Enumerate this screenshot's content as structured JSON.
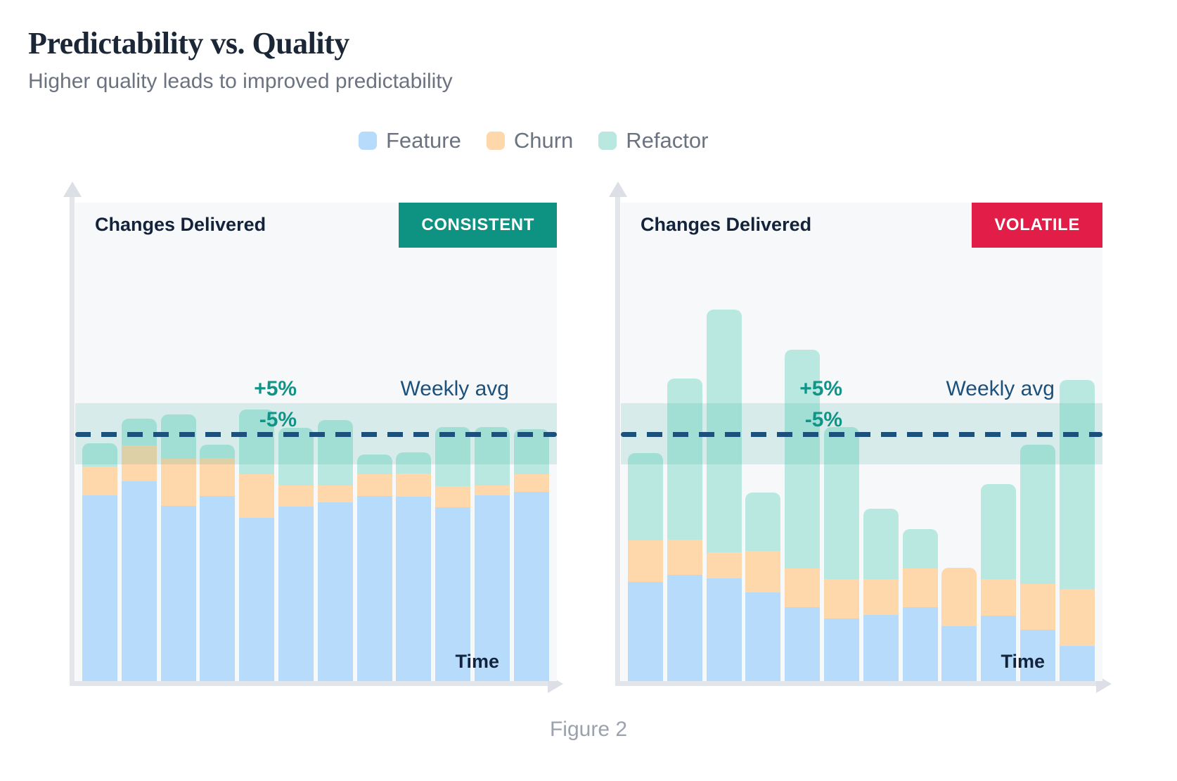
{
  "page": {
    "title": "Predictability vs. Quality",
    "subtitle": "Higher quality leads to improved predictability",
    "caption": "Figure 2"
  },
  "colors": {
    "feature": "#b7dcfb",
    "churn": "#fed8ab",
    "refactor": "#b9e8e0",
    "consistent_badge": "#0e9383",
    "volatile_badge": "#e11d48",
    "avg_line": "#1b517b",
    "band": "rgba(21,163,145,0.14)",
    "plusminus_text": "#0f9488"
  },
  "legend": {
    "items": [
      {
        "label": "Feature",
        "color": "#b7dcfb"
      },
      {
        "label": "Churn",
        "color": "#fed8ab"
      },
      {
        "label": "Refactor",
        "color": "#b9e8e0"
      }
    ]
  },
  "chart_data": [
    {
      "type": "bar",
      "stacked": true,
      "title": "Changes Delivered",
      "xlabel": "Time",
      "badge": {
        "label": "CONSISTENT",
        "color": "#0e9383"
      },
      "legend_position": "top-center",
      "grid": false,
      "units": "percent of plot height (0-100), stacked per bar",
      "avg_line": {
        "label": "Weekly avg",
        "height_pct": 51.6,
        "band_half_pct": 6.4,
        "plus_label": "+5%",
        "minus_label": "-5%"
      },
      "series_names": [
        "Feature",
        "Churn",
        "Refactor"
      ],
      "bars": [
        {
          "feature": 38.8,
          "churn": 6.0,
          "refactor": 4.9
        },
        {
          "feature": 41.8,
          "churn": 7.5,
          "refactor": 5.6
        },
        {
          "feature": 36.6,
          "churn": 9.9,
          "refactor": 9.3
        },
        {
          "feature": 38.7,
          "churn": 7.9,
          "refactor": 2.8
        },
        {
          "feature": 34.1,
          "churn": 9.1,
          "refactor": 13.5
        },
        {
          "feature": 36.5,
          "churn": 4.4,
          "refactor": 12.1
        },
        {
          "feature": 37.4,
          "churn": 3.5,
          "refactor": 13.7
        },
        {
          "feature": 38.7,
          "churn": 4.6,
          "refactor": 4.0
        },
        {
          "feature": 38.5,
          "churn": 4.9,
          "refactor": 4.4
        },
        {
          "feature": 36.3,
          "churn": 4.4,
          "refactor": 12.4
        },
        {
          "feature": 38.8,
          "churn": 2.1,
          "refactor": 12.2
        },
        {
          "feature": 39.6,
          "churn": 3.7,
          "refactor": 9.3
        }
      ]
    },
    {
      "type": "bar",
      "stacked": true,
      "title": "Changes Delivered",
      "xlabel": "Time",
      "badge": {
        "label": "VOLATILE",
        "color": "#e11d48"
      },
      "legend_position": "top-center",
      "grid": false,
      "units": "percent of plot height (0-100), stacked per bar",
      "avg_line": {
        "label": "Weekly avg",
        "height_pct": 51.6,
        "band_half_pct": 6.4,
        "plus_label": "+5%",
        "minus_label": "-5%"
      },
      "series_names": [
        "Feature",
        "Churn",
        "Refactor"
      ],
      "bars": [
        {
          "feature": 20.7,
          "churn": 8.7,
          "refactor": 18.2
        },
        {
          "feature": 22.2,
          "churn": 7.4,
          "refactor": 33.7
        },
        {
          "feature": 21.5,
          "churn": 5.4,
          "refactor": 50.7
        },
        {
          "feature": 18.5,
          "churn": 8.7,
          "refactor": 12.2
        },
        {
          "feature": 15.4,
          "churn": 8.1,
          "refactor": 45.7
        },
        {
          "feature": 13.1,
          "churn": 8.2,
          "refactor": 31.8
        },
        {
          "feature": 13.8,
          "churn": 7.5,
          "refactor": 14.7
        },
        {
          "feature": 15.4,
          "churn": 8.2,
          "refactor": 8.1
        },
        {
          "feature": 11.5,
          "churn": 12.2,
          "refactor": 0
        },
        {
          "feature": 13.7,
          "churn": 7.6,
          "refactor": 19.9
        },
        {
          "feature": 10.7,
          "churn": 9.6,
          "refactor": 29.1
        },
        {
          "feature": 7.4,
          "churn": 11.8,
          "refactor": 43.8
        }
      ]
    }
  ]
}
